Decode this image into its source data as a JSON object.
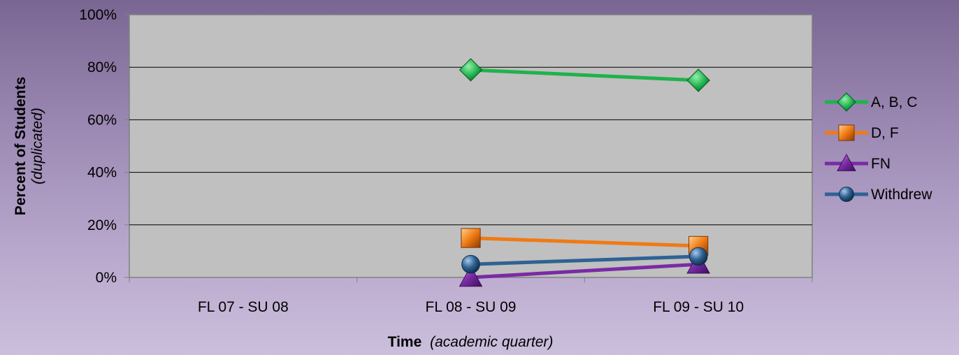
{
  "chart_data": {
    "type": "line",
    "categories": [
      "FL 07 - SU 08",
      "FL 08 - SU 09",
      "FL 09 - SU 10"
    ],
    "ylim": [
      0,
      100
    ],
    "yticks": [
      "0%",
      "20%",
      "40%",
      "60%",
      "80%",
      "100%"
    ],
    "y_tick_values": [
      0,
      20,
      40,
      60,
      80,
      100
    ],
    "xlabel_main": "Time",
    "xlabel_sub": "(academic quarter)",
    "ylabel_main": "Percent of Students",
    "ylabel_sub": "(duplicated)",
    "grid": true,
    "legend_position": "right",
    "series": [
      {
        "name": "A, B, C",
        "values": [
          null,
          79,
          75
        ],
        "color": "#1fb24c",
        "marker": "diamond"
      },
      {
        "name": "D, F",
        "values": [
          null,
          15,
          12
        ],
        "color": "#f07a14",
        "marker": "square"
      },
      {
        "name": "FN",
        "values": [
          null,
          0,
          5
        ],
        "color": "#7a2aa6",
        "marker": "triangle"
      },
      {
        "name": "Withdrew",
        "values": [
          null,
          5,
          8
        ],
        "color": "#2f6294",
        "marker": "circle"
      }
    ]
  }
}
